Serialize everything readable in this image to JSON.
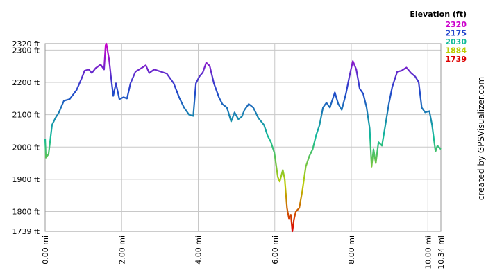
{
  "chart_data": {
    "type": "line",
    "legend": {
      "title": "Elevation (ft)",
      "values": [
        2320,
        2175,
        2030,
        1884,
        1739
      ],
      "colors": [
        "#cc00cc",
        "#2244cc",
        "#11bb99",
        "#bbcc00",
        "#dd0000"
      ]
    },
    "credit": "created by GPSVisualizer.com",
    "xlim": [
      0,
      10.34
    ],
    "xticks": [
      {
        "value": 0,
        "label": "0.00 mi"
      },
      {
        "value": 2,
        "label": "2.00 mi"
      },
      {
        "value": 4,
        "label": "4.00 mi"
      },
      {
        "value": 6,
        "label": "6.00 mi"
      },
      {
        "value": 8,
        "label": "8.00 mi"
      },
      {
        "value": 10,
        "label": "10.00 mi"
      },
      {
        "value": 10.34,
        "label": "10.34 mi"
      }
    ],
    "ylim": [
      1739,
      2320
    ],
    "yticks": [
      {
        "value": 1739,
        "label": "1739 ft"
      },
      {
        "value": 1800,
        "label": "1800 ft"
      },
      {
        "value": 1900,
        "label": "1900 ft"
      },
      {
        "value": 2000,
        "label": "2000 ft"
      },
      {
        "value": 2100,
        "label": "2100 ft"
      },
      {
        "value": 2200,
        "label": "2200 ft"
      },
      {
        "value": 2300,
        "label": "2300 ft"
      },
      {
        "value": 2320,
        "label": "2320 ft"
      }
    ],
    "grid": true,
    "x": [
      0,
      0.02,
      0.09,
      0.18,
      0.27,
      0.36,
      0.49,
      0.64,
      0.82,
      0.96,
      1.03,
      1.14,
      1.22,
      1.32,
      1.45,
      1.54,
      1.58,
      1.6,
      1.67,
      1.72,
      1.78,
      1.85,
      1.94,
      2.05,
      2.14,
      2.23,
      2.36,
      2.54,
      2.63,
      2.72,
      2.85,
      3.03,
      3.18,
      3.36,
      3.5,
      3.63,
      3.76,
      3.87,
      3.94,
      4.03,
      4.12,
      4.21,
      4.3,
      4.41,
      4.54,
      4.63,
      4.75,
      4.86,
      4.95,
      5.05,
      5.14,
      5.21,
      5.32,
      5.44,
      5.57,
      5.72,
      5.81,
      5.9,
      5.99,
      6.08,
      6.13,
      6.21,
      6.26,
      6.32,
      6.37,
      6.42,
      6.46,
      6.5,
      6.55,
      6.64,
      6.72,
      6.81,
      6.9,
      6.99,
      7.08,
      7.17,
      7.26,
      7.35,
      7.44,
      7.57,
      7.66,
      7.75,
      7.86,
      7.95,
      8.04,
      8.13,
      8.22,
      8.31,
      8.4,
      8.48,
      8.53,
      8.58,
      8.64,
      8.71,
      8.8,
      8.89,
      8.98,
      9.07,
      9.2,
      9.31,
      9.44,
      9.56,
      9.67,
      9.76,
      9.84,
      9.93,
      10.04,
      10.11,
      10.2,
      10.25,
      10.34
    ],
    "series": [
      {
        "name": "Elevation (ft)",
        "values": [
          2025,
          1967,
          1978,
          2068,
          2090,
          2107,
          2143,
          2148,
          2176,
          2214,
          2236,
          2240,
          2229,
          2244,
          2255,
          2240,
          2315,
          2320,
          2272,
          2218,
          2158,
          2197,
          2148,
          2154,
          2150,
          2197,
          2233,
          2246,
          2253,
          2229,
          2240,
          2233,
          2227,
          2197,
          2154,
          2122,
          2100,
          2096,
          2197,
          2218,
          2231,
          2261,
          2251,
          2197,
          2154,
          2133,
          2122,
          2079,
          2107,
          2086,
          2094,
          2115,
          2133,
          2122,
          2090,
          2068,
          2036,
          2015,
          1982,
          1907,
          1893,
          1929,
          1901,
          1811,
          1779,
          1790,
          1739,
          1775,
          1800,
          1811,
          1864,
          1939,
          1971,
          1993,
          2036,
          2068,
          2122,
          2137,
          2122,
          2169,
          2133,
          2115,
          2165,
          2218,
          2266,
          2240,
          2180,
          2165,
          2122,
          2058,
          1939,
          1993,
          1950,
          2015,
          2004,
          2068,
          2133,
          2186,
          2233,
          2236,
          2246,
          2229,
          2218,
          2201,
          2122,
          2107,
          2111,
          2068,
          1986,
          2004,
          1993
        ]
      }
    ]
  }
}
